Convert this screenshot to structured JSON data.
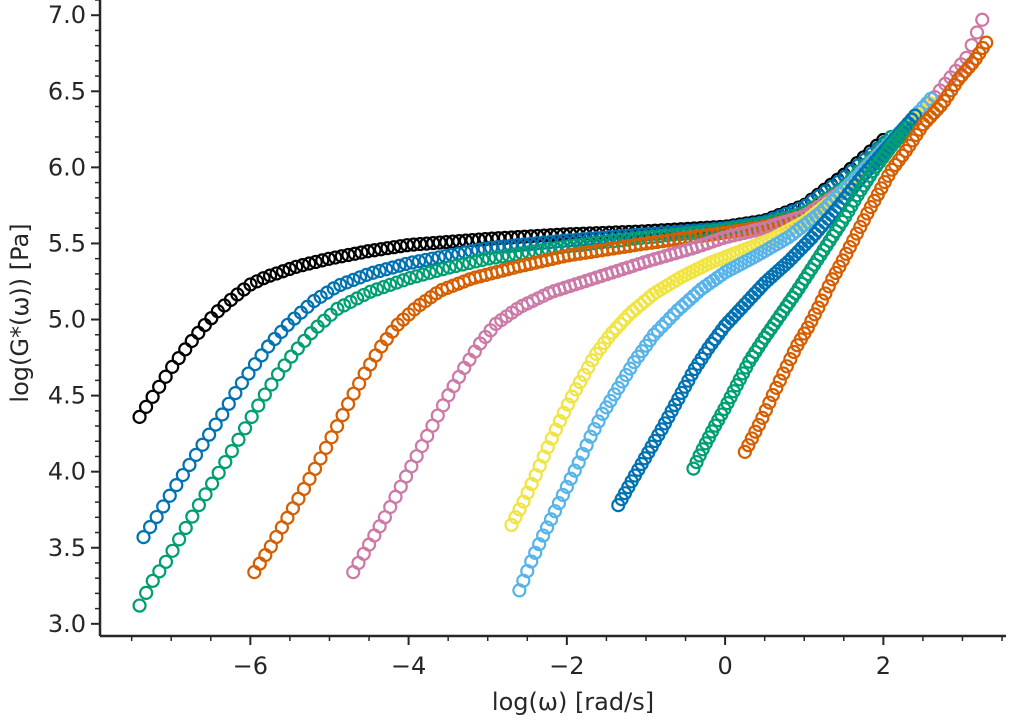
{
  "chart_data": {
    "type": "scatter",
    "title": "",
    "xlabel": "log(ω) [rad/s]",
    "ylabel": "log(G*(ω)) [Pa]",
    "xlim": [
      -7.9,
      3.55
    ],
    "ylim": [
      2.92,
      7.1
    ],
    "x_ticks": [
      -6,
      -4,
      -2,
      0,
      2
    ],
    "x_tick_labels": [
      "−6",
      "−4",
      "−2",
      "0",
      "2"
    ],
    "y_ticks": [
      3.0,
      3.5,
      4.0,
      4.5,
      5.0,
      5.5,
      6.0,
      6.5,
      7.0
    ],
    "y_tick_labels": [
      "3.0",
      "3.5",
      "4.0",
      "4.5",
      "5.0",
      "5.5",
      "6.0",
      "6.5",
      "7.0"
    ],
    "x_minor_step": 0.5,
    "y_minor_step": 0.1,
    "grid": false,
    "legend": "none",
    "marker": "open circle",
    "series": [
      {
        "color": "#000000",
        "x_range": [
          -7.4,
          2.0
        ],
        "n": 115,
        "points": [
          [
            -7.4,
            4.36
          ],
          [
            -7.2,
            4.52
          ],
          [
            -7.0,
            4.68
          ],
          [
            -6.8,
            4.82
          ],
          [
            -6.6,
            4.95
          ],
          [
            -6.4,
            5.06
          ],
          [
            -6.2,
            5.15
          ],
          [
            -6.0,
            5.23
          ],
          [
            -5.8,
            5.28
          ],
          [
            -5.4,
            5.35
          ],
          [
            -5.0,
            5.4
          ],
          [
            -4.5,
            5.45
          ],
          [
            -4.0,
            5.49
          ],
          [
            -3.0,
            5.53
          ],
          [
            -2.0,
            5.56
          ],
          [
            -1.0,
            5.58
          ],
          [
            0.0,
            5.61
          ],
          [
            0.5,
            5.65
          ],
          [
            1.0,
            5.75
          ],
          [
            1.5,
            5.95
          ],
          [
            2.0,
            6.18
          ]
        ]
      },
      {
        "color": "#0072B2",
        "x_range": [
          -7.35,
          2.1
        ],
        "n": 115,
        "points": [
          [
            -7.35,
            3.57
          ],
          [
            -7.15,
            3.73
          ],
          [
            -6.95,
            3.9
          ],
          [
            -6.75,
            4.06
          ],
          [
            -6.55,
            4.22
          ],
          [
            -6.35,
            4.38
          ],
          [
            -6.15,
            4.55
          ],
          [
            -5.95,
            4.7
          ],
          [
            -5.75,
            4.84
          ],
          [
            -5.5,
            4.98
          ],
          [
            -5.2,
            5.12
          ],
          [
            -4.9,
            5.22
          ],
          [
            -4.5,
            5.3
          ],
          [
            -4.0,
            5.37
          ],
          [
            -3.5,
            5.42
          ],
          [
            -3.0,
            5.47
          ],
          [
            -2.0,
            5.52
          ],
          [
            -1.0,
            5.56
          ],
          [
            0.0,
            5.6
          ],
          [
            0.5,
            5.64
          ],
          [
            1.0,
            5.74
          ],
          [
            1.5,
            5.93
          ],
          [
            2.1,
            6.2
          ]
        ]
      },
      {
        "color": "#009E73",
        "x_range": [
          -7.4,
          2.1
        ],
        "n": 115,
        "points": [
          [
            -7.4,
            3.12
          ],
          [
            -7.25,
            3.27
          ],
          [
            -7.05,
            3.42
          ],
          [
            -6.85,
            3.6
          ],
          [
            -6.65,
            3.78
          ],
          [
            -6.45,
            3.95
          ],
          [
            -6.25,
            4.12
          ],
          [
            -6.05,
            4.3
          ],
          [
            -5.85,
            4.48
          ],
          [
            -5.65,
            4.64
          ],
          [
            -5.45,
            4.78
          ],
          [
            -5.2,
            4.93
          ],
          [
            -4.9,
            5.07
          ],
          [
            -4.5,
            5.18
          ],
          [
            -4.0,
            5.27
          ],
          [
            -3.5,
            5.34
          ],
          [
            -3.0,
            5.4
          ],
          [
            -2.0,
            5.48
          ],
          [
            -1.0,
            5.54
          ],
          [
            0.0,
            5.59
          ],
          [
            0.5,
            5.63
          ],
          [
            1.0,
            5.7
          ],
          [
            1.5,
            5.87
          ],
          [
            2.1,
            6.2
          ]
        ]
      },
      {
        "color": "#D55E00",
        "x_range": [
          -5.95,
          2.0
        ],
        "n": 115,
        "points": [
          [
            -5.95,
            3.34
          ],
          [
            -5.75,
            3.5
          ],
          [
            -5.55,
            3.68
          ],
          [
            -5.35,
            3.86
          ],
          [
            -5.15,
            4.05
          ],
          [
            -4.95,
            4.25
          ],
          [
            -4.75,
            4.46
          ],
          [
            -4.55,
            4.65
          ],
          [
            -4.35,
            4.82
          ],
          [
            -4.15,
            4.96
          ],
          [
            -3.9,
            5.08
          ],
          [
            -3.6,
            5.19
          ],
          [
            -3.2,
            5.27
          ],
          [
            -2.6,
            5.35
          ],
          [
            -2.0,
            5.42
          ],
          [
            -1.0,
            5.5
          ],
          [
            0.0,
            5.57
          ],
          [
            0.5,
            5.61
          ],
          [
            1.0,
            5.68
          ],
          [
            1.5,
            5.85
          ],
          [
            2.0,
            6.12
          ]
        ]
      },
      {
        "color": "#CC79A7",
        "x_range": [
          -4.7,
          3.25
        ],
        "n": 120,
        "points": [
          [
            -4.7,
            3.34
          ],
          [
            -4.5,
            3.52
          ],
          [
            -4.3,
            3.7
          ],
          [
            -4.1,
            3.9
          ],
          [
            -3.9,
            4.1
          ],
          [
            -3.7,
            4.3
          ],
          [
            -3.5,
            4.5
          ],
          [
            -3.3,
            4.68
          ],
          [
            -3.1,
            4.84
          ],
          [
            -2.9,
            4.97
          ],
          [
            -2.6,
            5.08
          ],
          [
            -2.2,
            5.18
          ],
          [
            -1.6,
            5.28
          ],
          [
            -1.0,
            5.38
          ],
          [
            -0.4,
            5.47
          ],
          [
            0.0,
            5.54
          ],
          [
            0.5,
            5.6
          ],
          [
            1.0,
            5.68
          ],
          [
            1.5,
            5.85
          ],
          [
            2.0,
            6.12
          ],
          [
            2.4,
            6.3
          ],
          [
            2.8,
            6.56
          ],
          [
            3.05,
            6.72
          ],
          [
            3.25,
            6.97
          ]
        ]
      },
      {
        "color": "#F0E442",
        "x_range": [
          -2.7,
          2.6
        ],
        "n": 105,
        "points": [
          [
            -2.7,
            3.65
          ],
          [
            -2.55,
            3.8
          ],
          [
            -2.4,
            3.97
          ],
          [
            -2.25,
            4.15
          ],
          [
            -2.1,
            4.32
          ],
          [
            -1.95,
            4.48
          ],
          [
            -1.8,
            4.62
          ],
          [
            -1.65,
            4.76
          ],
          [
            -1.45,
            4.9
          ],
          [
            -1.2,
            5.04
          ],
          [
            -0.9,
            5.17
          ],
          [
            -0.55,
            5.28
          ],
          [
            -0.2,
            5.37
          ],
          [
            0.2,
            5.45
          ],
          [
            0.6,
            5.53
          ],
          [
            1.0,
            5.64
          ],
          [
            1.4,
            5.8
          ],
          [
            1.8,
            6.0
          ],
          [
            2.2,
            6.22
          ],
          [
            2.6,
            6.42
          ]
        ]
      },
      {
        "color": "#56B4E9",
        "x_range": [
          -2.6,
          2.6
        ],
        "n": 105,
        "points": [
          [
            -2.6,
            3.22
          ],
          [
            -2.45,
            3.41
          ],
          [
            -2.3,
            3.58
          ],
          [
            -2.15,
            3.74
          ],
          [
            -2.0,
            3.9
          ],
          [
            -1.85,
            4.06
          ],
          [
            -1.7,
            4.23
          ],
          [
            -1.55,
            4.38
          ],
          [
            -1.35,
            4.55
          ],
          [
            -1.15,
            4.72
          ],
          [
            -0.9,
            4.9
          ],
          [
            -0.6,
            5.06
          ],
          [
            -0.3,
            5.2
          ],
          [
            0.0,
            5.31
          ],
          [
            0.4,
            5.42
          ],
          [
            0.8,
            5.54
          ],
          [
            1.2,
            5.7
          ],
          [
            1.6,
            5.9
          ],
          [
            2.0,
            6.12
          ],
          [
            2.3,
            6.28
          ],
          [
            2.6,
            6.45
          ]
        ]
      },
      {
        "color": "#0072B2",
        "x_range": [
          -1.35,
          2.4
        ],
        "n": 90,
        "points": [
          [
            -1.35,
            3.78
          ],
          [
            -1.2,
            3.92
          ],
          [
            -1.0,
            4.1
          ],
          [
            -0.8,
            4.28
          ],
          [
            -0.6,
            4.47
          ],
          [
            -0.4,
            4.66
          ],
          [
            -0.2,
            4.82
          ],
          [
            0.0,
            4.96
          ],
          [
            0.25,
            5.1
          ],
          [
            0.5,
            5.24
          ],
          [
            0.8,
            5.38
          ],
          [
            1.1,
            5.54
          ],
          [
            1.4,
            5.72
          ],
          [
            1.7,
            5.92
          ],
          [
            2.0,
            6.1
          ],
          [
            2.4,
            6.34
          ]
        ]
      },
      {
        "color": "#009E73",
        "x_range": [
          -0.4,
          2.3
        ],
        "n": 70,
        "points": [
          [
            -0.4,
            4.02
          ],
          [
            -0.3,
            4.13
          ],
          [
            -0.15,
            4.28
          ],
          [
            0.0,
            4.42
          ],
          [
            0.15,
            4.57
          ],
          [
            0.3,
            4.72
          ],
          [
            0.5,
            4.88
          ],
          [
            0.7,
            5.03
          ],
          [
            0.9,
            5.18
          ],
          [
            1.1,
            5.34
          ],
          [
            1.3,
            5.5
          ],
          [
            1.5,
            5.66
          ],
          [
            1.7,
            5.84
          ],
          [
            1.9,
            6.0
          ],
          [
            2.1,
            6.14
          ],
          [
            2.3,
            6.26
          ]
        ]
      },
      {
        "color": "#D55E00",
        "x_range": [
          0.25,
          3.3
        ],
        "n": 70,
        "points": [
          [
            0.25,
            4.13
          ],
          [
            0.45,
            4.33
          ],
          [
            0.6,
            4.5
          ],
          [
            0.75,
            4.66
          ],
          [
            0.9,
            4.82
          ],
          [
            1.05,
            4.95
          ],
          [
            1.2,
            5.1
          ],
          [
            1.35,
            5.26
          ],
          [
            1.5,
            5.4
          ],
          [
            1.65,
            5.55
          ],
          [
            1.8,
            5.7
          ],
          [
            1.95,
            5.84
          ],
          [
            2.1,
            5.98
          ],
          [
            2.3,
            6.12
          ],
          [
            2.5,
            6.28
          ],
          [
            2.75,
            6.42
          ],
          [
            2.95,
            6.58
          ],
          [
            3.15,
            6.7
          ],
          [
            3.3,
            6.82
          ]
        ]
      }
    ]
  }
}
